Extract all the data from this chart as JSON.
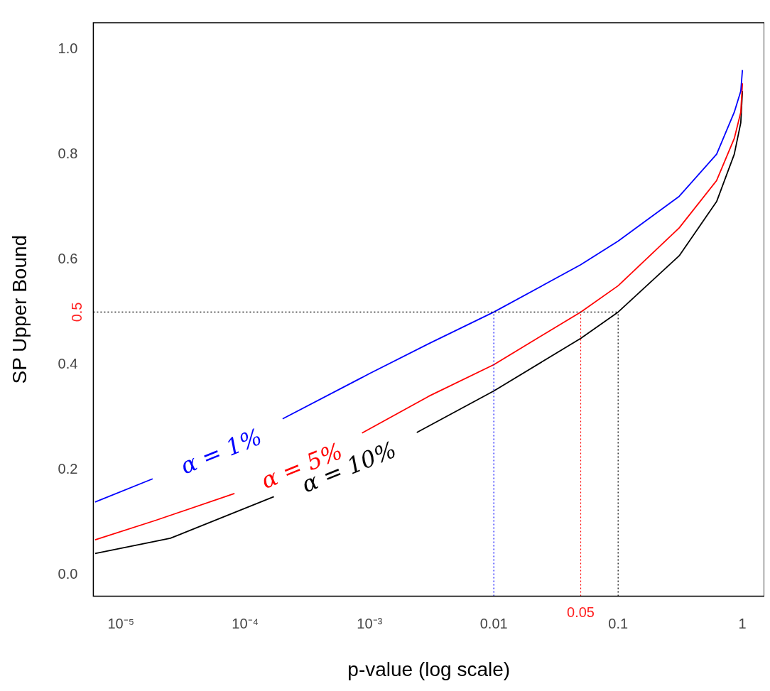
{
  "chart_data": {
    "type": "line",
    "xlabel": "p-value (log scale)",
    "ylabel": "SP Upper Bound",
    "log": "x",
    "grid": false,
    "legend": false,
    "line_style": "solid",
    "marker": "none",
    "xlim": [
      6e-06,
      1.5
    ],
    "ylim": [
      -0.04,
      1.05
    ],
    "xticks": [
      {
        "value": 1e-05,
        "label": "10⁻⁵"
      },
      {
        "value": 0.0001,
        "label": "10⁻⁴"
      },
      {
        "value": 0.001,
        "label": "10⁻³"
      },
      0.01,
      0.1,
      1
    ],
    "yticks": [
      {
        "value": 0,
        "label": "0.0"
      },
      {
        "value": 0.2,
        "label": "0.2"
      },
      {
        "value": 0.4,
        "label": "0.4"
      },
      {
        "value": 0.6,
        "label": "0.6"
      },
      {
        "value": 0.8,
        "label": "0.8"
      },
      {
        "value": 1,
        "label": "1.0"
      }
    ],
    "series": [
      {
        "color": "#0000ff",
        "x": [
          6.2e-06,
          1.8e-05,
          5e-05,
          0.0002,
          0.001,
          0.003,
          0.01,
          0.05,
          0.1,
          0.31,
          0.62,
          0.86,
          0.97,
          1
        ],
        "values": [
          0.139,
          0.183,
          null,
          0.297,
          0.383,
          0.44,
          0.5,
          0.59,
          0.635,
          0.72,
          0.8,
          0.88,
          0.92,
          0.96
        ]
      },
      {
        "color": "#ff0000",
        "x": [
          6.2e-06,
          1.9e-05,
          8.2e-05,
          0.0003,
          0.00087,
          0.003,
          0.01,
          0.05,
          0.1,
          0.31,
          0.62,
          0.86,
          0.97,
          1
        ],
        "values": [
          0.067,
          0.104,
          0.155,
          null,
          0.27,
          0.34,
          0.4,
          0.5,
          0.55,
          0.66,
          0.75,
          0.83,
          0.88,
          0.935
        ]
      },
      {
        "color": "#000000",
        "x": [
          6.2e-06,
          2.5e-05,
          0.00017,
          0.0005,
          0.0024,
          0.01,
          0.05,
          0.1,
          0.31,
          0.62,
          0.86,
          0.97,
          1
        ],
        "values": [
          0.041,
          0.07,
          0.149,
          null,
          0.271,
          0.35,
          0.45,
          0.5,
          0.607,
          0.71,
          0.8,
          0.86,
          0.92
        ]
      }
    ],
    "ref_lines": [
      {
        "axis": "y",
        "value": 0.5,
        "label": "0.5",
        "color": "#000000",
        "line_style": "dotted"
      },
      {
        "axis": "x",
        "value": 0.01,
        "color": "#0000ff",
        "line_style": "dotted"
      },
      {
        "axis": "x",
        "value": 0.05,
        "label": "0.05",
        "color": "#ff0000",
        "line_style": "dotted"
      },
      {
        "axis": "x",
        "value": 0.1,
        "color": "#000000",
        "line_style": "dotted"
      }
    ],
    "annotations": [
      "α = 1%",
      "α = 5%",
      "α = 10%"
    ]
  }
}
